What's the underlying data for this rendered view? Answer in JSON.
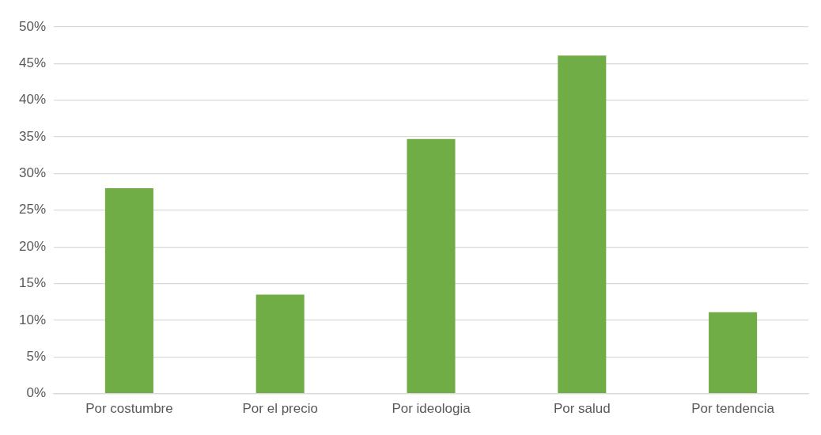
{
  "chart_data": {
    "type": "bar",
    "categories": [
      "Por costumbre",
      "Por el precio",
      "Por ideologia",
      "Por salud",
      "Por tendencia"
    ],
    "values": [
      28,
      13.5,
      34.7,
      46.1,
      11.1
    ],
    "color": "#70ad47",
    "ylim": [
      0,
      50
    ],
    "yticks": [
      {
        "value": 0,
        "label": "0%"
      },
      {
        "value": 5,
        "label": "5%"
      },
      {
        "value": 10,
        "label": "10%"
      },
      {
        "value": 15,
        "label": "15%"
      },
      {
        "value": 20,
        "label": "20%"
      },
      {
        "value": 25,
        "label": "25%"
      },
      {
        "value": 30,
        "label": "30%"
      },
      {
        "value": 35,
        "label": "35%"
      },
      {
        "value": 40,
        "label": "40%"
      },
      {
        "value": 45,
        "label": "45%"
      },
      {
        "value": 50,
        "label": "50%"
      }
    ],
    "grid": "y",
    "legend": false
  }
}
